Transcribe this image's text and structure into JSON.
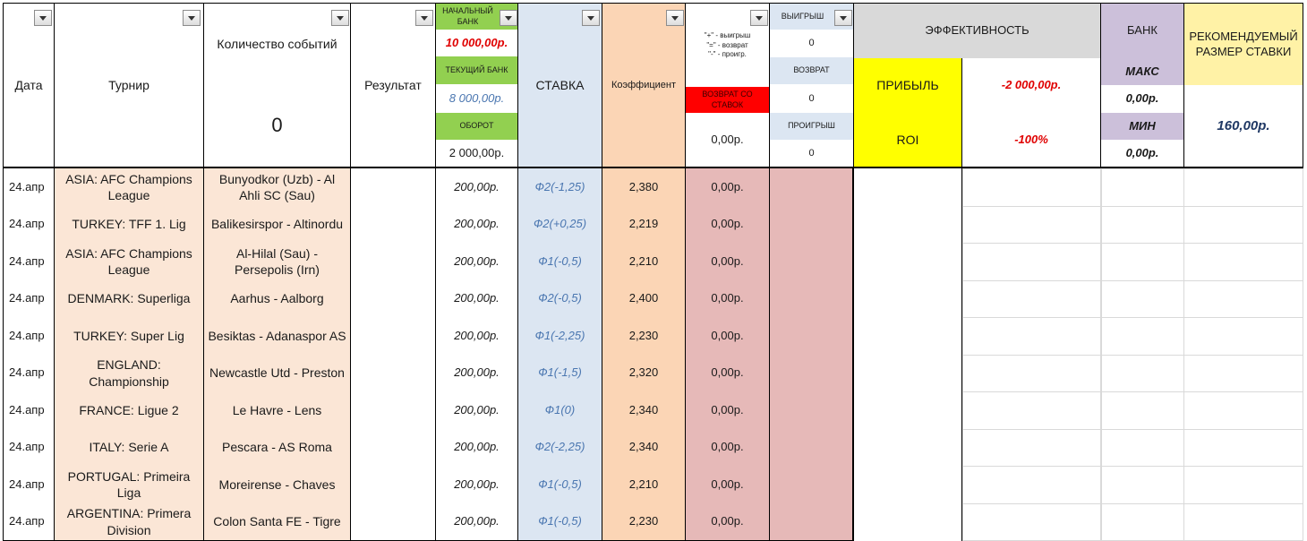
{
  "header": {
    "date": "Дата",
    "tournament": "Турнир",
    "event_count_label": "Количество событий",
    "event_count_value": "0",
    "result": "Результат",
    "initial_bank_label": "НАЧАЛЬНЫЙ БАНК",
    "initial_bank_value": "10 000,00р.",
    "current_bank_label": "ТЕКУЩИЙ БАНК",
    "current_bank_value": "8 000,00р.",
    "turnover_label": "ОБОРОТ",
    "turnover_value": "2 000,00р.",
    "stake": "СТАВКА",
    "coefficient": "Коэффициент",
    "legend": [
      "\"+\" - выигрыш",
      "\"=\" - возврат",
      "\"-\" - проигр."
    ],
    "refund_label": "ВОЗВРАТ СО СТАВОК",
    "refund_value": "0,00р.",
    "win_label": "ВЫИГРЫШ",
    "win_value": "0",
    "return_label": "ВОЗВРАТ",
    "return_value": "0",
    "loss_label": "ПРОИГРЫШ",
    "loss_value": "0",
    "efficiency_label": "ЭФФЕКТИВНОСТЬ",
    "profit_label": "ПРИБЫЛЬ",
    "profit_value": "-2 000,00р.",
    "roi_label": "ROI",
    "roi_value": "-100%",
    "bank_label": "БАНК",
    "max_label": "МАКС",
    "max_value": "0,00р.",
    "min_label": "МИН",
    "min_value": "0,00р.",
    "recommended_label": "РЕКОМЕНДУЕМЫЙ РАЗМЕР СТАВКИ",
    "recommended_value": "160,00р."
  },
  "rows": [
    {
      "date": "24.апр",
      "tournament": "ASIA: AFC Champions League",
      "match": "Bunyodkor (Uzb) - Al Ahli SC (Sau)",
      "result": "",
      "amount": "200,00р.",
      "bet": "Ф2(-1,25)",
      "coef": "2,380",
      "refund": "0,00р."
    },
    {
      "date": "24.апр",
      "tournament": "TURKEY: TFF 1. Lig",
      "match": "Balikesirspor - Altinordu",
      "result": "",
      "amount": "200,00р.",
      "bet": "Ф2(+0,25)",
      "coef": "2,219",
      "refund": "0,00р."
    },
    {
      "date": "24.апр",
      "tournament": "ASIA: AFC Champions League",
      "match": "Al-Hilal (Sau) - Persepolis (Irn)",
      "result": "",
      "amount": "200,00р.",
      "bet": "Ф1(-0,5)",
      "coef": "2,210",
      "refund": "0,00р."
    },
    {
      "date": "24.апр",
      "tournament": "DENMARK: Superliga",
      "match": "Aarhus - Aalborg",
      "result": "",
      "amount": "200,00р.",
      "bet": "Ф2(-0,5)",
      "coef": "2,400",
      "refund": "0,00р."
    },
    {
      "date": "24.апр",
      "tournament": "TURKEY: Super Lig",
      "match": "Besiktas - Adanaspor AS",
      "result": "",
      "amount": "200,00р.",
      "bet": "Ф1(-2,25)",
      "coef": "2,230",
      "refund": "0,00р."
    },
    {
      "date": "24.апр",
      "tournament": "ENGLAND: Championship",
      "match": "Newcastle Utd - Preston",
      "result": "",
      "amount": "200,00р.",
      "bet": "Ф1(-1,5)",
      "coef": "2,320",
      "refund": "0,00р."
    },
    {
      "date": "24.апр",
      "tournament": "FRANCE: Ligue 2",
      "match": "Le Havre - Lens",
      "result": "",
      "amount": "200,00р.",
      "bet": "Ф1(0)",
      "coef": "2,340",
      "refund": "0,00р."
    },
    {
      "date": "24.апр",
      "tournament": "ITALY: Serie A",
      "match": "Pescara - AS Roma",
      "result": "",
      "amount": "200,00р.",
      "bet": "Ф2(-2,25)",
      "coef": "2,340",
      "refund": "0,00р."
    },
    {
      "date": "24.апр",
      "tournament": "PORTUGAL: Primeira Liga",
      "match": "Moreirense - Chaves",
      "result": "",
      "amount": "200,00р.",
      "bet": "Ф1(-0,5)",
      "coef": "2,210",
      "refund": "0,00р."
    },
    {
      "date": "24.апр",
      "tournament": "ARGENTINA: Primera Division",
      "match": "Colon Santa FE - Tigre",
      "result": "",
      "amount": "200,00р.",
      "bet": "Ф1(-0,5)",
      "coef": "2,230",
      "refund": "0,00р."
    }
  ],
  "icons": {
    "filter_dropdown": "chevron-down-icon"
  }
}
